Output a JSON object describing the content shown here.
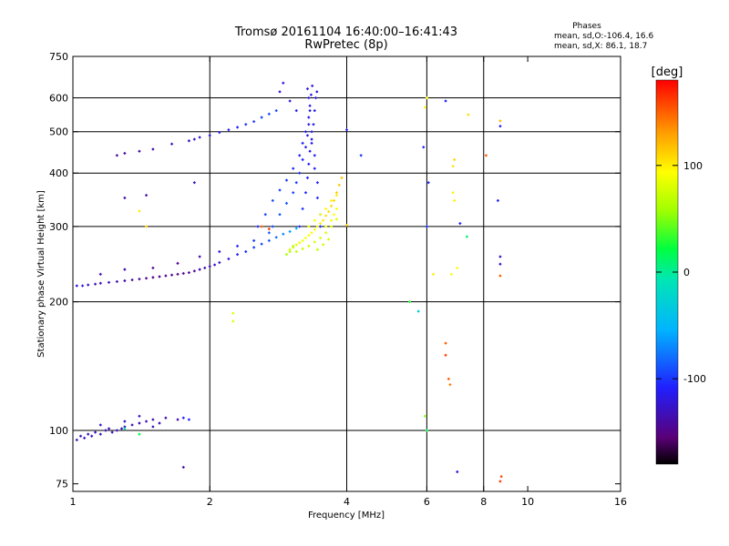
{
  "header": {
    "title": "Tromsø 20161104 16:40:00–16:41:43",
    "subtitle": "RwPretec (8p)",
    "stats_title": "Phases",
    "stats_o": "mean, sd,O:-106.4, 16.6",
    "stats_x": "mean, sd,X:  86.1, 18.7"
  },
  "colorbar": {
    "label": "[deg]",
    "ticks": [
      {
        "value": 100,
        "label": "100"
      },
      {
        "value": 0,
        "label": "0"
      },
      {
        "value": -100,
        "label": "-100"
      }
    ],
    "range": [
      -180,
      180
    ]
  },
  "chart_data": {
    "type": "scatter",
    "xlabel": "Frequency [MHz]",
    "ylabel": "Stationary phase Virtual Height [km]",
    "xscale": "log",
    "yscale": "log",
    "xlim": [
      1,
      16
    ],
    "ylim": [
      72,
      750
    ],
    "xticks": [
      1,
      2,
      4,
      6,
      8,
      10,
      16
    ],
    "xtick_labels": [
      "1",
      "2",
      "4",
      "6",
      "8",
      "10",
      "16"
    ],
    "yticks": [
      75,
      100,
      200,
      300,
      400,
      500,
      600,
      750
    ],
    "ytick_labels": [
      "75",
      "100",
      "200",
      "300",
      "400",
      "500",
      "600",
      "750"
    ],
    "grid_x": [
      2,
      4,
      6,
      8
    ],
    "grid_y": [
      100,
      200,
      300,
      400,
      500,
      600
    ],
    "colorscale": "rainbow",
    "series": [
      {
        "name": "O",
        "color_by": "phase_deg",
        "points": [
          [
            1.02,
            218,
            -120
          ],
          [
            1.05,
            218,
            -120
          ],
          [
            1.08,
            219,
            -125
          ],
          [
            1.12,
            220,
            -130
          ],
          [
            1.15,
            221,
            -130
          ],
          [
            1.2,
            222,
            -135
          ],
          [
            1.25,
            223,
            -135
          ],
          [
            1.3,
            224,
            -140
          ],
          [
            1.35,
            225,
            -140
          ],
          [
            1.4,
            226,
            -145
          ],
          [
            1.45,
            227,
            -145
          ],
          [
            1.5,
            228,
            -150
          ],
          [
            1.55,
            229,
            -150
          ],
          [
            1.6,
            230,
            -150
          ],
          [
            1.65,
            231,
            -150
          ],
          [
            1.7,
            232,
            -150
          ],
          [
            1.75,
            233,
            -148
          ],
          [
            1.8,
            234,
            -146
          ],
          [
            1.85,
            236,
            -143
          ],
          [
            1.9,
            238,
            -140
          ],
          [
            1.95,
            240,
            -136
          ],
          [
            2.0,
            242,
            -132
          ],
          [
            2.05,
            244,
            -128
          ],
          [
            2.1,
            247,
            -124
          ],
          [
            2.2,
            252,
            -118
          ],
          [
            2.3,
            258,
            -112
          ],
          [
            2.4,
            262,
            -105
          ],
          [
            2.5,
            268,
            -100
          ],
          [
            2.6,
            273,
            -94
          ],
          [
            2.7,
            278,
            -88
          ],
          [
            2.8,
            283,
            -80
          ],
          [
            2.9,
            288,
            -70
          ],
          [
            3.0,
            292,
            -60
          ],
          [
            3.1,
            297,
            -55
          ],
          [
            1.15,
            232,
            -135
          ],
          [
            1.3,
            238,
            -140
          ],
          [
            1.5,
            240,
            -148
          ],
          [
            1.7,
            246,
            -145
          ],
          [
            1.9,
            255,
            -135
          ],
          [
            2.1,
            262,
            -120
          ],
          [
            2.3,
            270,
            -110
          ],
          [
            2.5,
            278,
            -100
          ],
          [
            2.7,
            290,
            -85
          ],
          [
            2.55,
            300,
            -100
          ],
          [
            2.65,
            320,
            -95
          ],
          [
            2.75,
            345,
            -92
          ],
          [
            2.85,
            365,
            -95
          ],
          [
            2.95,
            385,
            -100
          ],
          [
            3.05,
            410,
            -105
          ],
          [
            3.15,
            440,
            -108
          ],
          [
            3.2,
            470,
            -110
          ],
          [
            3.25,
            500,
            -112
          ],
          [
            3.3,
            540,
            -115
          ],
          [
            3.32,
            575,
            -115
          ],
          [
            3.34,
            610,
            -118
          ],
          [
            3.36,
            640,
            -118
          ],
          [
            2.75,
            300,
            -90
          ],
          [
            2.85,
            320,
            -88
          ],
          [
            2.95,
            340,
            -90
          ],
          [
            3.05,
            360,
            -95
          ],
          [
            3.1,
            380,
            -100
          ],
          [
            3.15,
            400,
            -105
          ],
          [
            3.2,
            430,
            -110
          ],
          [
            3.25,
            460,
            -112
          ],
          [
            3.28,
            490,
            -114
          ],
          [
            3.3,
            520,
            -116
          ],
          [
            3.32,
            560,
            -116
          ],
          [
            3.3,
            600,
            -118
          ],
          [
            3.28,
            630,
            -120
          ],
          [
            3.15,
            300,
            -100
          ],
          [
            3.2,
            330,
            -102
          ],
          [
            3.25,
            360,
            -106
          ],
          [
            3.28,
            390,
            -108
          ],
          [
            3.3,
            420,
            -110
          ],
          [
            3.32,
            450,
            -112
          ],
          [
            3.35,
            480,
            -114
          ],
          [
            3.38,
            520,
            -116
          ],
          [
            3.4,
            560,
            -118
          ],
          [
            3.42,
            600,
            -118
          ],
          [
            3.44,
            620,
            -120
          ],
          [
            2.9,
            650,
            -120
          ],
          [
            2.85,
            620,
            -120
          ],
          [
            3.0,
            590,
            -118
          ],
          [
            3.1,
            560,
            -116
          ],
          [
            3.35,
            500,
            -112
          ],
          [
            3.35,
            470,
            -112
          ],
          [
            3.4,
            440,
            -110
          ],
          [
            3.4,
            410,
            -108
          ],
          [
            3.45,
            380,
            -106
          ],
          [
            3.45,
            350,
            -104
          ],
          [
            3.5,
            320,
            -102
          ],
          [
            3.5,
            300,
            -100
          ],
          [
            1.25,
            440,
            -145
          ],
          [
            1.3,
            445,
            -142
          ],
          [
            1.4,
            450,
            -140
          ],
          [
            1.5,
            455,
            -138
          ],
          [
            1.65,
            468,
            -130
          ],
          [
            1.8,
            476,
            -128
          ],
          [
            1.85,
            480,
            -125
          ],
          [
            1.9,
            485,
            -122
          ],
          [
            2.0,
            490,
            -118
          ],
          [
            2.1,
            498,
            -114
          ],
          [
            2.2,
            505,
            -110
          ],
          [
            2.3,
            512,
            -106
          ],
          [
            2.4,
            520,
            -102
          ],
          [
            2.5,
            528,
            -98
          ],
          [
            2.6,
            540,
            -95
          ],
          [
            2.7,
            550,
            -93
          ],
          [
            2.8,
            560,
            -92
          ],
          [
            1.3,
            350,
            -140
          ],
          [
            1.45,
            355,
            -135
          ],
          [
            1.85,
            380,
            -130
          ],
          [
            4.3,
            440,
            -100
          ],
          [
            4.0,
            505,
            -110
          ],
          [
            5.9,
            460,
            -105
          ],
          [
            6.05,
            380,
            -105
          ],
          [
            6.0,
            300,
            -100
          ],
          [
            6.6,
            590,
            -108
          ],
          [
            7.1,
            305,
            -108
          ],
          [
            8.6,
            345,
            -110
          ],
          [
            8.7,
            255,
            -125
          ],
          [
            8.7,
            245,
            -130
          ],
          [
            8.7,
            515,
            -115
          ],
          [
            7.0,
            80,
            -120
          ],
          [
            1.75,
            82,
            -140
          ],
          [
            1.02,
            95,
            -130
          ],
          [
            1.04,
            97,
            -130
          ],
          [
            1.06,
            96,
            -128
          ],
          [
            1.08,
            98,
            -130
          ],
          [
            1.1,
            97,
            -128
          ],
          [
            1.12,
            99,
            -130
          ],
          [
            1.15,
            98,
            -130
          ],
          [
            1.18,
            100,
            -130
          ],
          [
            1.2,
            101,
            -132
          ],
          [
            1.22,
            99,
            -128
          ],
          [
            1.25,
            100,
            -130
          ],
          [
            1.28,
            101,
            -130
          ],
          [
            1.3,
            102,
            -132
          ],
          [
            1.35,
            103,
            -132
          ],
          [
            1.4,
            104,
            -134
          ],
          [
            1.45,
            105,
            -134
          ],
          [
            1.5,
            106,
            -136
          ],
          [
            1.55,
            104,
            -134
          ],
          [
            1.6,
            107,
            -136
          ],
          [
            1.7,
            106,
            -136
          ],
          [
            1.75,
            107,
            -110
          ],
          [
            1.8,
            106,
            -108
          ],
          [
            1.15,
            103,
            -126
          ],
          [
            1.3,
            105,
            -128
          ],
          [
            1.4,
            108,
            -130
          ],
          [
            1.5,
            102,
            -132
          ]
        ]
      },
      {
        "name": "X",
        "color_by": "phase_deg",
        "points": [
          [
            3.0,
            265,
            80
          ],
          [
            3.05,
            268,
            82
          ],
          [
            3.1,
            272,
            84
          ],
          [
            3.15,
            275,
            86
          ],
          [
            3.2,
            278,
            88
          ],
          [
            3.25,
            282,
            90
          ],
          [
            3.3,
            286,
            92
          ],
          [
            3.35,
            290,
            94
          ],
          [
            3.4,
            295,
            96
          ],
          [
            3.45,
            300,
            98
          ],
          [
            3.5,
            305,
            100
          ],
          [
            3.55,
            310,
            102
          ],
          [
            3.6,
            318,
            104
          ],
          [
            3.65,
            325,
            106
          ],
          [
            3.7,
            335,
            108
          ],
          [
            3.75,
            345,
            110
          ],
          [
            3.8,
            360,
            112
          ],
          [
            3.85,
            375,
            114
          ],
          [
            3.9,
            390,
            116
          ],
          [
            3.1,
            262,
            70
          ],
          [
            3.2,
            266,
            72
          ],
          [
            3.3,
            270,
            74
          ],
          [
            3.4,
            276,
            76
          ],
          [
            3.5,
            282,
            78
          ],
          [
            3.6,
            290,
            80
          ],
          [
            3.7,
            300,
            82
          ],
          [
            3.8,
            312,
            84
          ],
          [
            3.3,
            300,
            90
          ],
          [
            3.4,
            310,
            92
          ],
          [
            3.5,
            320,
            94
          ],
          [
            3.6,
            330,
            96
          ],
          [
            3.7,
            345,
            98
          ],
          [
            3.8,
            355,
            100
          ],
          [
            3.6,
            300,
            88
          ],
          [
            3.7,
            310,
            90
          ],
          [
            3.75,
            320,
            92
          ],
          [
            3.8,
            330,
            94
          ],
          [
            2.95,
            258,
            60
          ],
          [
            3.0,
            262,
            62
          ],
          [
            3.05,
            270,
            65
          ],
          [
            3.45,
            265,
            72
          ],
          [
            3.55,
            272,
            74
          ],
          [
            3.65,
            280,
            78
          ],
          [
            2.25,
            180,
            80
          ],
          [
            2.25,
            188,
            82
          ],
          [
            6.85,
            415,
            105
          ],
          [
            6.9,
            430,
            110
          ],
          [
            6.2,
            232,
            100
          ],
          [
            6.8,
            232,
            95
          ],
          [
            6.85,
            360,
            100
          ],
          [
            6.9,
            345,
            98
          ],
          [
            7.0,
            240,
            95
          ],
          [
            5.95,
            570,
            100
          ],
          [
            6.0,
            600,
            95
          ],
          [
            7.4,
            548,
            105
          ],
          [
            8.1,
            440,
            150
          ],
          [
            8.7,
            530,
            120
          ],
          [
            8.7,
            230,
            150
          ],
          [
            6.6,
            150,
            160
          ],
          [
            6.7,
            132,
            150
          ],
          [
            6.75,
            128,
            140
          ],
          [
            6.6,
            160,
            150
          ],
          [
            8.7,
            76,
            160
          ],
          [
            8.75,
            78,
            155
          ]
        ]
      },
      {
        "name": "other",
        "color_by": "phase_deg",
        "points": [
          [
            5.5,
            200,
            30
          ],
          [
            5.75,
            190,
            -30
          ],
          [
            5.95,
            108,
            50
          ],
          [
            7.35,
            284,
            10
          ],
          [
            6.0,
            100,
            20
          ],
          [
            1.3,
            101,
            -10
          ],
          [
            1.4,
            98,
            20
          ],
          [
            4.0,
            302,
            110
          ],
          [
            2.6,
            300,
            150
          ],
          [
            2.7,
            296,
            160
          ],
          [
            1.4,
            326,
            100
          ],
          [
            1.45,
            300,
            110
          ]
        ]
      }
    ]
  }
}
